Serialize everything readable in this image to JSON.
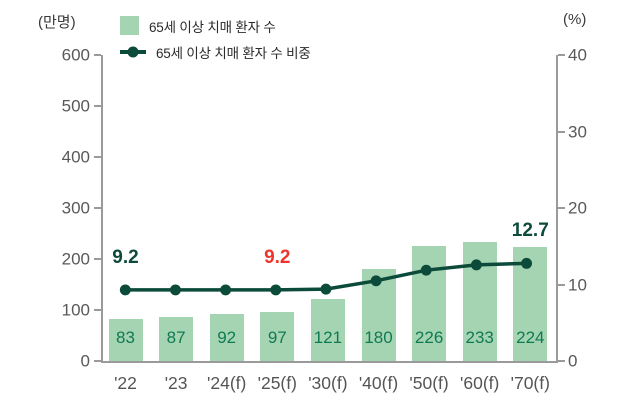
{
  "units": {
    "left": "(만명)",
    "right": "(%)"
  },
  "legend": [
    {
      "label": "65세 이상 치매 환자 수",
      "marker": "bar-swatch"
    },
    {
      "label": "65세 이상 치매 환자 수 비중",
      "marker": "line-dot"
    }
  ],
  "colors": {
    "bar_fill": "#a5d4b3",
    "line": "#0c4a3a",
    "bar_value_text": "#0f7a52",
    "annotation_green": "#0d4a3c",
    "annotation_red": "#ee352b",
    "axis": "#9a9a9a",
    "tick_text": "#595959",
    "x_label_text": "#555555"
  },
  "chart_data": {
    "type": "bar",
    "combo": "bar+line",
    "title": "",
    "categories": [
      "'22",
      "'23",
      "'24(f)",
      "'25(f)",
      "'30(f)",
      "'40(f)",
      "'50(f)",
      "'60(f)",
      "'70(f)"
    ],
    "series": [
      {
        "name": "65세 이상 치매 환자 수",
        "type": "bar",
        "axis": "left",
        "values": [
          83,
          87,
          92,
          97,
          121,
          180,
          226,
          233,
          224
        ]
      },
      {
        "name": "65세 이상 치매 환자 수 비중",
        "type": "line",
        "axis": "right",
        "values": [
          9.2,
          9.2,
          9.2,
          9.2,
          9.3,
          10.4,
          11.8,
          12.5,
          12.7
        ]
      }
    ],
    "left_axis": {
      "label": "(만명)",
      "min": 0,
      "max": 600,
      "step": 100,
      "tick_labels": [
        "0",
        "100",
        "200",
        "300",
        "400",
        "500",
        "600"
      ]
    },
    "right_axis": {
      "label": "(%)",
      "min": 0,
      "max": 40,
      "step": 10,
      "tick_labels": [
        "0",
        "10",
        "20",
        "30",
        "40"
      ]
    },
    "annotations": [
      {
        "text": "9.2",
        "index": 0,
        "color": "#0d4a3c"
      },
      {
        "text": "9.2",
        "index": 3,
        "color": "#ee352b"
      },
      {
        "text": "12.7",
        "index": 8,
        "color": "#0d4a3c"
      }
    ],
    "grid": false,
    "legend_position": "top-left"
  }
}
